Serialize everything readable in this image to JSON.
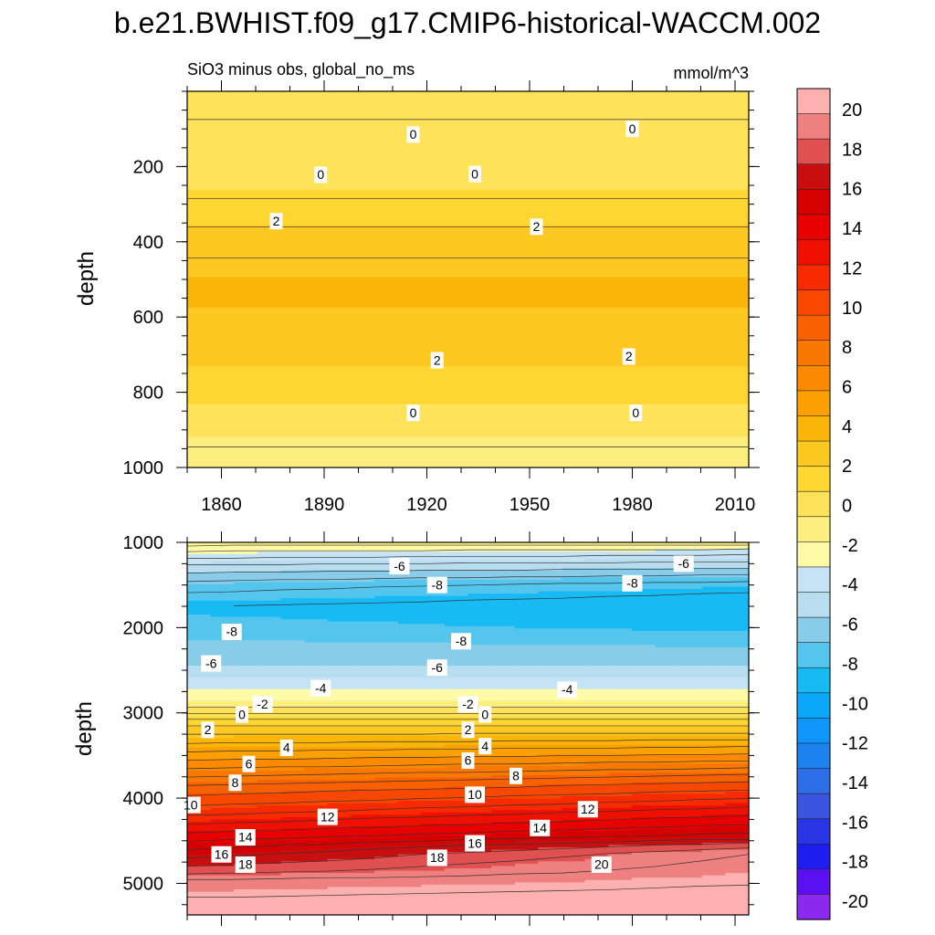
{
  "title": "b.e21.BWHIST.f09_g17.CMIP6-historical-WACCM.002",
  "chart_data": [
    {
      "type": "heatmap",
      "subtitle_left": "SiO3 minus obs, global_no_ms",
      "subtitle_right": "mmol/m^3",
      "ylabel": "depth",
      "xlim": [
        1850,
        2014
      ],
      "ylim": [
        1000,
        0
      ],
      "x_ticks": [
        "1860",
        "1890",
        "1920",
        "1950",
        "1980",
        "2010"
      ],
      "y_ticks": [
        "200",
        "400",
        "600",
        "800",
        "1000"
      ],
      "depth_profile": [
        {
          "depth": 0,
          "value": 0.5
        },
        {
          "depth": 40,
          "value": 0.5
        },
        {
          "depth": 60,
          "value": 0.2
        },
        {
          "depth": 100,
          "value": -0.4
        },
        {
          "depth": 150,
          "value": -0.5
        },
        {
          "depth": 200,
          "value": -0.3
        },
        {
          "depth": 230,
          "value": 0.2
        },
        {
          "depth": 270,
          "value": 0.8
        },
        {
          "depth": 330,
          "value": 1.6
        },
        {
          "depth": 380,
          "value": 2.3
        },
        {
          "depth": 430,
          "value": 2.9
        },
        {
          "depth": 480,
          "value": 3.3
        },
        {
          "depth": 550,
          "value": 3.5
        },
        {
          "depth": 600,
          "value": 3.2
        },
        {
          "depth": 650,
          "value": 2.8
        },
        {
          "depth": 700,
          "value": 2.4
        },
        {
          "depth": 750,
          "value": 1.8
        },
        {
          "depth": 800,
          "value": 1.1
        },
        {
          "depth": 850,
          "value": 0.4
        },
        {
          "depth": 880,
          "value": -0.2
        },
        {
          "depth": 930,
          "value": -0.8
        },
        {
          "depth": 970,
          "value": -1.4
        },
        {
          "depth": 1000,
          "value": -1.8
        }
      ],
      "contour_labels": [
        {
          "text": "0",
          "year": 1916,
          "depth": 115
        },
        {
          "text": "0",
          "year": 1980,
          "depth": 100
        },
        {
          "text": "0",
          "year": 1889,
          "depth": 222
        },
        {
          "text": "0",
          "year": 1934,
          "depth": 220
        },
        {
          "text": "2",
          "year": 1876,
          "depth": 345
        },
        {
          "text": "2",
          "year": 1952,
          "depth": 360
        },
        {
          "text": "2",
          "year": 1923,
          "depth": 715
        },
        {
          "text": "2",
          "year": 1979,
          "depth": 705
        },
        {
          "text": "0",
          "year": 1916,
          "depth": 855
        },
        {
          "text": "0",
          "year": 1981,
          "depth": 855
        }
      ]
    },
    {
      "type": "heatmap",
      "ylabel": "depth",
      "xlim": [
        1850,
        2014
      ],
      "ylim": [
        5370,
        1000
      ],
      "y_ticks": [
        "1000",
        "2000",
        "3000",
        "4000",
        "5000"
      ],
      "depth_profile_start": [
        {
          "depth": 1000,
          "value": -1.5
        },
        {
          "depth": 1100,
          "value": -3
        },
        {
          "depth": 1300,
          "value": -5.5
        },
        {
          "depth": 1500,
          "value": -7.5
        },
        {
          "depth": 1750,
          "value": -9
        },
        {
          "depth": 2000,
          "value": -8.2
        },
        {
          "depth": 2200,
          "value": -7
        },
        {
          "depth": 2450,
          "value": -6
        },
        {
          "depth": 2650,
          "value": -4
        },
        {
          "depth": 2850,
          "value": -2
        },
        {
          "depth": 3000,
          "value": 0
        },
        {
          "depth": 3150,
          "value": 2
        },
        {
          "depth": 3400,
          "value": 4.5
        },
        {
          "depth": 3650,
          "value": 7
        },
        {
          "depth": 3900,
          "value": 9.5
        },
        {
          "depth": 4150,
          "value": 11.5
        },
        {
          "depth": 4350,
          "value": 13.5
        },
        {
          "depth": 4550,
          "value": 15.5
        },
        {
          "depth": 4700,
          "value": 17
        },
        {
          "depth": 4850,
          "value": 18.5
        },
        {
          "depth": 4950,
          "value": 20
        },
        {
          "depth": 5370,
          "value": 22
        }
      ],
      "depth_profile_end": [
        {
          "depth": 1000,
          "value": -1.5
        },
        {
          "depth": 1100,
          "value": -3.5
        },
        {
          "depth": 1300,
          "value": -6
        },
        {
          "depth": 1500,
          "value": -8.6
        },
        {
          "depth": 1750,
          "value": -9.8
        },
        {
          "depth": 2000,
          "value": -9
        },
        {
          "depth": 2200,
          "value": -7.5
        },
        {
          "depth": 2450,
          "value": -6
        },
        {
          "depth": 2650,
          "value": -4
        },
        {
          "depth": 2850,
          "value": -2
        },
        {
          "depth": 3000,
          "value": 0
        },
        {
          "depth": 3150,
          "value": 2
        },
        {
          "depth": 3350,
          "value": 4.5
        },
        {
          "depth": 3600,
          "value": 7.5
        },
        {
          "depth": 3800,
          "value": 10
        },
        {
          "depth": 4000,
          "value": 12
        },
        {
          "depth": 4150,
          "value": 13.5
        },
        {
          "depth": 4300,
          "value": 15
        },
        {
          "depth": 4450,
          "value": 16.5
        },
        {
          "depth": 4550,
          "value": 18.5
        },
        {
          "depth": 4650,
          "value": 20
        },
        {
          "depth": 5370,
          "value": 22
        }
      ],
      "contour_labels": [
        {
          "text": "-6",
          "year": 1912,
          "depth": 1280
        },
        {
          "text": "-6",
          "year": 1995,
          "depth": 1250
        },
        {
          "text": "-8",
          "year": 1923,
          "depth": 1500
        },
        {
          "text": "-8",
          "year": 1980,
          "depth": 1480
        },
        {
          "text": "-8",
          "year": 1863,
          "depth": 2050
        },
        {
          "text": "-8",
          "year": 1930,
          "depth": 2160
        },
        {
          "text": "-6",
          "year": 1857,
          "depth": 2420
        },
        {
          "text": "-6",
          "year": 1923,
          "depth": 2470
        },
        {
          "text": "-4",
          "year": 1889,
          "depth": 2710
        },
        {
          "text": "-4",
          "year": 1961,
          "depth": 2730
        },
        {
          "text": "-2",
          "year": 1872,
          "depth": 2900
        },
        {
          "text": "-2",
          "year": 1932,
          "depth": 2900
        },
        {
          "text": "0",
          "year": 1866,
          "depth": 3020
        },
        {
          "text": "0",
          "year": 1937,
          "depth": 3020
        },
        {
          "text": "2",
          "year": 1856,
          "depth": 3200
        },
        {
          "text": "2",
          "year": 1932,
          "depth": 3200
        },
        {
          "text": "4",
          "year": 1879,
          "depth": 3410
        },
        {
          "text": "4",
          "year": 1937,
          "depth": 3390
        },
        {
          "text": "6",
          "year": 1868,
          "depth": 3600
        },
        {
          "text": "6",
          "year": 1932,
          "depth": 3560
        },
        {
          "text": "8",
          "year": 1864,
          "depth": 3820
        },
        {
          "text": "8",
          "year": 1946,
          "depth": 3740
        },
        {
          "text": "10",
          "year": 1851,
          "depth": 4080
        },
        {
          "text": "10",
          "year": 1934,
          "depth": 3960
        },
        {
          "text": "12",
          "year": 1891,
          "depth": 4220
        },
        {
          "text": "12",
          "year": 1967,
          "depth": 4130
        },
        {
          "text": "14",
          "year": 1867,
          "depth": 4460
        },
        {
          "text": "14",
          "year": 1953,
          "depth": 4350
        },
        {
          "text": "16",
          "year": 1860,
          "depth": 4660
        },
        {
          "text": "16",
          "year": 1934,
          "depth": 4530
        },
        {
          "text": "18",
          "year": 1867,
          "depth": 4780
        },
        {
          "text": "18",
          "year": 1923,
          "depth": 4700
        },
        {
          "text": "20",
          "year": 1971,
          "depth": 4780
        }
      ]
    }
  ],
  "colorbar": {
    "levels": [
      -22,
      -20,
      -18,
      -16,
      -14,
      -12,
      -10,
      -8,
      -6,
      -4,
      -2,
      0,
      2,
      4,
      6,
      8,
      10,
      12,
      14,
      16,
      18,
      20,
      22
    ],
    "tick_labels": [
      "20",
      "18",
      "16",
      "14",
      "12",
      "10",
      "8",
      "6",
      "4",
      "2",
      "0",
      "-2",
      "-4",
      "-6",
      "-8",
      "-10",
      "-12",
      "-14",
      "-16",
      "-18",
      "-20"
    ],
    "colors": [
      "#8c28f0",
      "#5a10f0",
      "#1e1ef0",
      "#2a36e6",
      "#3a55e0",
      "#2e6ee8",
      "#1c82f0",
      "#0f96fa",
      "#0aa6f8",
      "#18baf4",
      "#54c6ee",
      "#88ccea",
      "#b8ddee",
      "#c6e3f5",
      "#fefaa8",
      "#fcee80",
      "#fde25a",
      "#fdd632",
      "#fdc822",
      "#fbb408",
      "#fba000",
      "#fb8a00",
      "#f97800",
      "#f86000",
      "#f84800",
      "#f82a00",
      "#f01000",
      "#e80000",
      "#d60000",
      "#c80e0e",
      "#e05050",
      "#ef8080",
      "#fcb0b0"
    ]
  }
}
